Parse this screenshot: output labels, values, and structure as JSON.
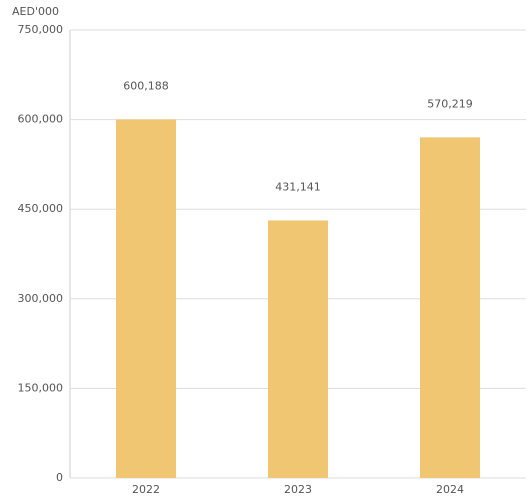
{
  "chart_data": {
    "type": "bar",
    "y_label": "AED'000",
    "categories": [
      "2022",
      "2023",
      "2024"
    ],
    "values": [
      600188,
      431141,
      570219
    ],
    "value_labels": [
      "600,188",
      "431,141",
      "570,219"
    ],
    "color": "#f1c673",
    "ylim": [
      0,
      750000
    ],
    "yticks": [
      0,
      {
        "value": 150000,
        "label": "150,000"
      },
      {
        "value": 300000,
        "label": "300,000"
      },
      {
        "value": 450000,
        "label": "450,000"
      },
      {
        "value": 600000,
        "label": "600,000"
      },
      {
        "value": 750000,
        "label": "750,000"
      }
    ],
    "grid": true
  }
}
